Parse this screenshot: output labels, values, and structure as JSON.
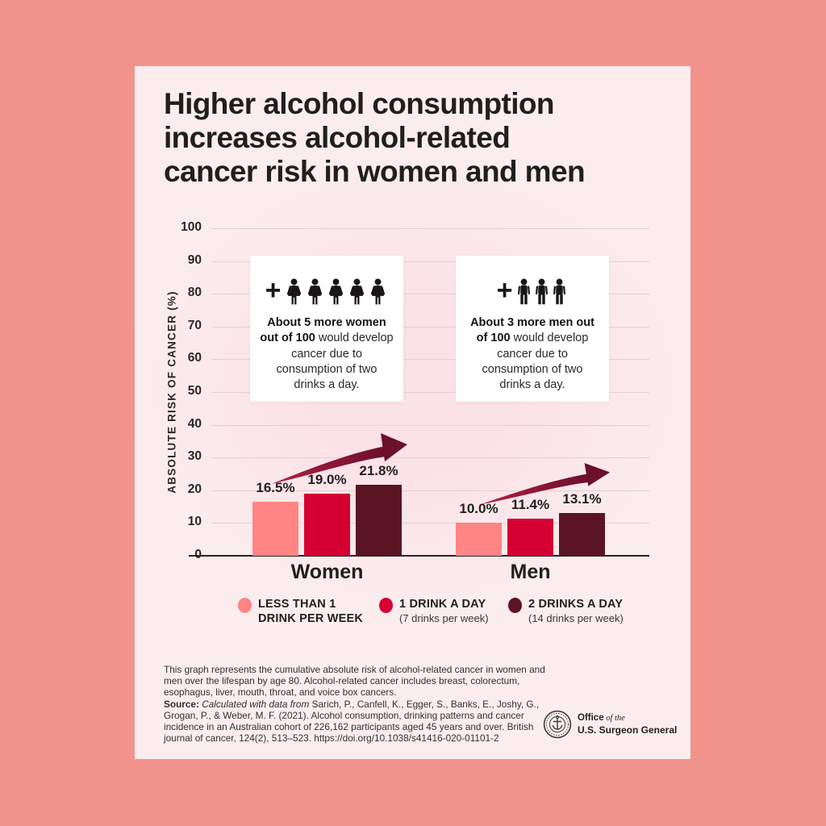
{
  "colors": {
    "page_bg": "#F2938B",
    "card_bg": "#FBEDEE",
    "bar_light": "#FF8584",
    "bar_red": "#D50032",
    "bar_dark": "#5B1423",
    "arrow_start": "#B12144",
    "arrow_end": "#6B0F2A",
    "gridline": "#E2D0D4",
    "text_dark": "#211E1F"
  },
  "title": "Higher alcohol consumption\nincreases alcohol-related\ncancer risk in women and men",
  "chart_data": {
    "type": "bar",
    "title": "Higher alcohol consumption increases alcohol-related cancer risk in women and men",
    "xlabel": "",
    "ylabel": "ABSOLUTE RISK OF CANCER (%)",
    "ylim": [
      0,
      100
    ],
    "yticks": [
      0,
      10,
      20,
      30,
      40,
      50,
      60,
      70,
      80,
      90,
      100
    ],
    "grid": true,
    "legend_position": "bottom",
    "categories": [
      "Women",
      "Men"
    ],
    "series": [
      {
        "name": "LESS THAN 1 DRINK PER WEEK",
        "color": "#FF8584",
        "values": [
          16.5,
          10.0
        ]
      },
      {
        "name": "1 DRINK A DAY (7 drinks per week)",
        "color": "#D50032",
        "values": [
          19.0,
          11.4
        ]
      },
      {
        "name": "2 DRINKS A DAY (14 drinks per week)",
        "color": "#5B1423",
        "values": [
          21.8,
          13.1
        ]
      }
    ],
    "data_labels": [
      [
        "16.5%",
        "19.0%",
        "21.8%"
      ],
      [
        "10.0%",
        "11.4%",
        "13.1%"
      ]
    ],
    "annotations": [
      "About 5 more women out of 100 would develop cancer due to consumption of two drinks a day.",
      "About 3 more men out of 100 would develop cancer due to consumption of two drinks a day."
    ]
  },
  "callouts": [
    {
      "figure": "woman",
      "count": 5,
      "bold": "About 5 more women out of 100",
      "rest": " would develop cancer due to consumption of two drinks a day."
    },
    {
      "figure": "man",
      "count": 3,
      "bold": "About 3 more men out of 100",
      "rest": " would develop cancer due to consumption of two drinks a day."
    }
  ],
  "legend": [
    {
      "color": "#FF8584",
      "label": "LESS THAN 1\nDRINK PER WEEK",
      "sub": ""
    },
    {
      "color": "#D50032",
      "label": "1 DRINK A DAY",
      "sub": "(7 drinks per week)"
    },
    {
      "color": "#5B1423",
      "label": "2 DRINKS A DAY",
      "sub": "(14 drinks per week)"
    }
  ],
  "footnote": "This graph represents the cumulative absolute risk of alcohol-related cancer in women and men over the lifespan by age 80. Alcohol-related cancer includes breast, colorectum, esophagus, liver, mouth, throat, and voice box cancers.",
  "source": {
    "label": "Source:",
    "italic": " Calculated with data from ",
    "text": "Sarich, P., Canfell, K., Egger, S., Banks, E., Joshy, G., Grogan, P., & Weber, M. F. (2021). Alcohol consumption, drinking patterns and cancer incidence in an Australian cohort of 226,162 participants aged 45 years and over. British journal of cancer, 124(2), 513–523. https://doi.org/10.1038/s41416-020-01101-2"
  },
  "logo": {
    "office": "Office",
    "of_the": " of the",
    "line2": "U.S. Surgeon General"
  }
}
